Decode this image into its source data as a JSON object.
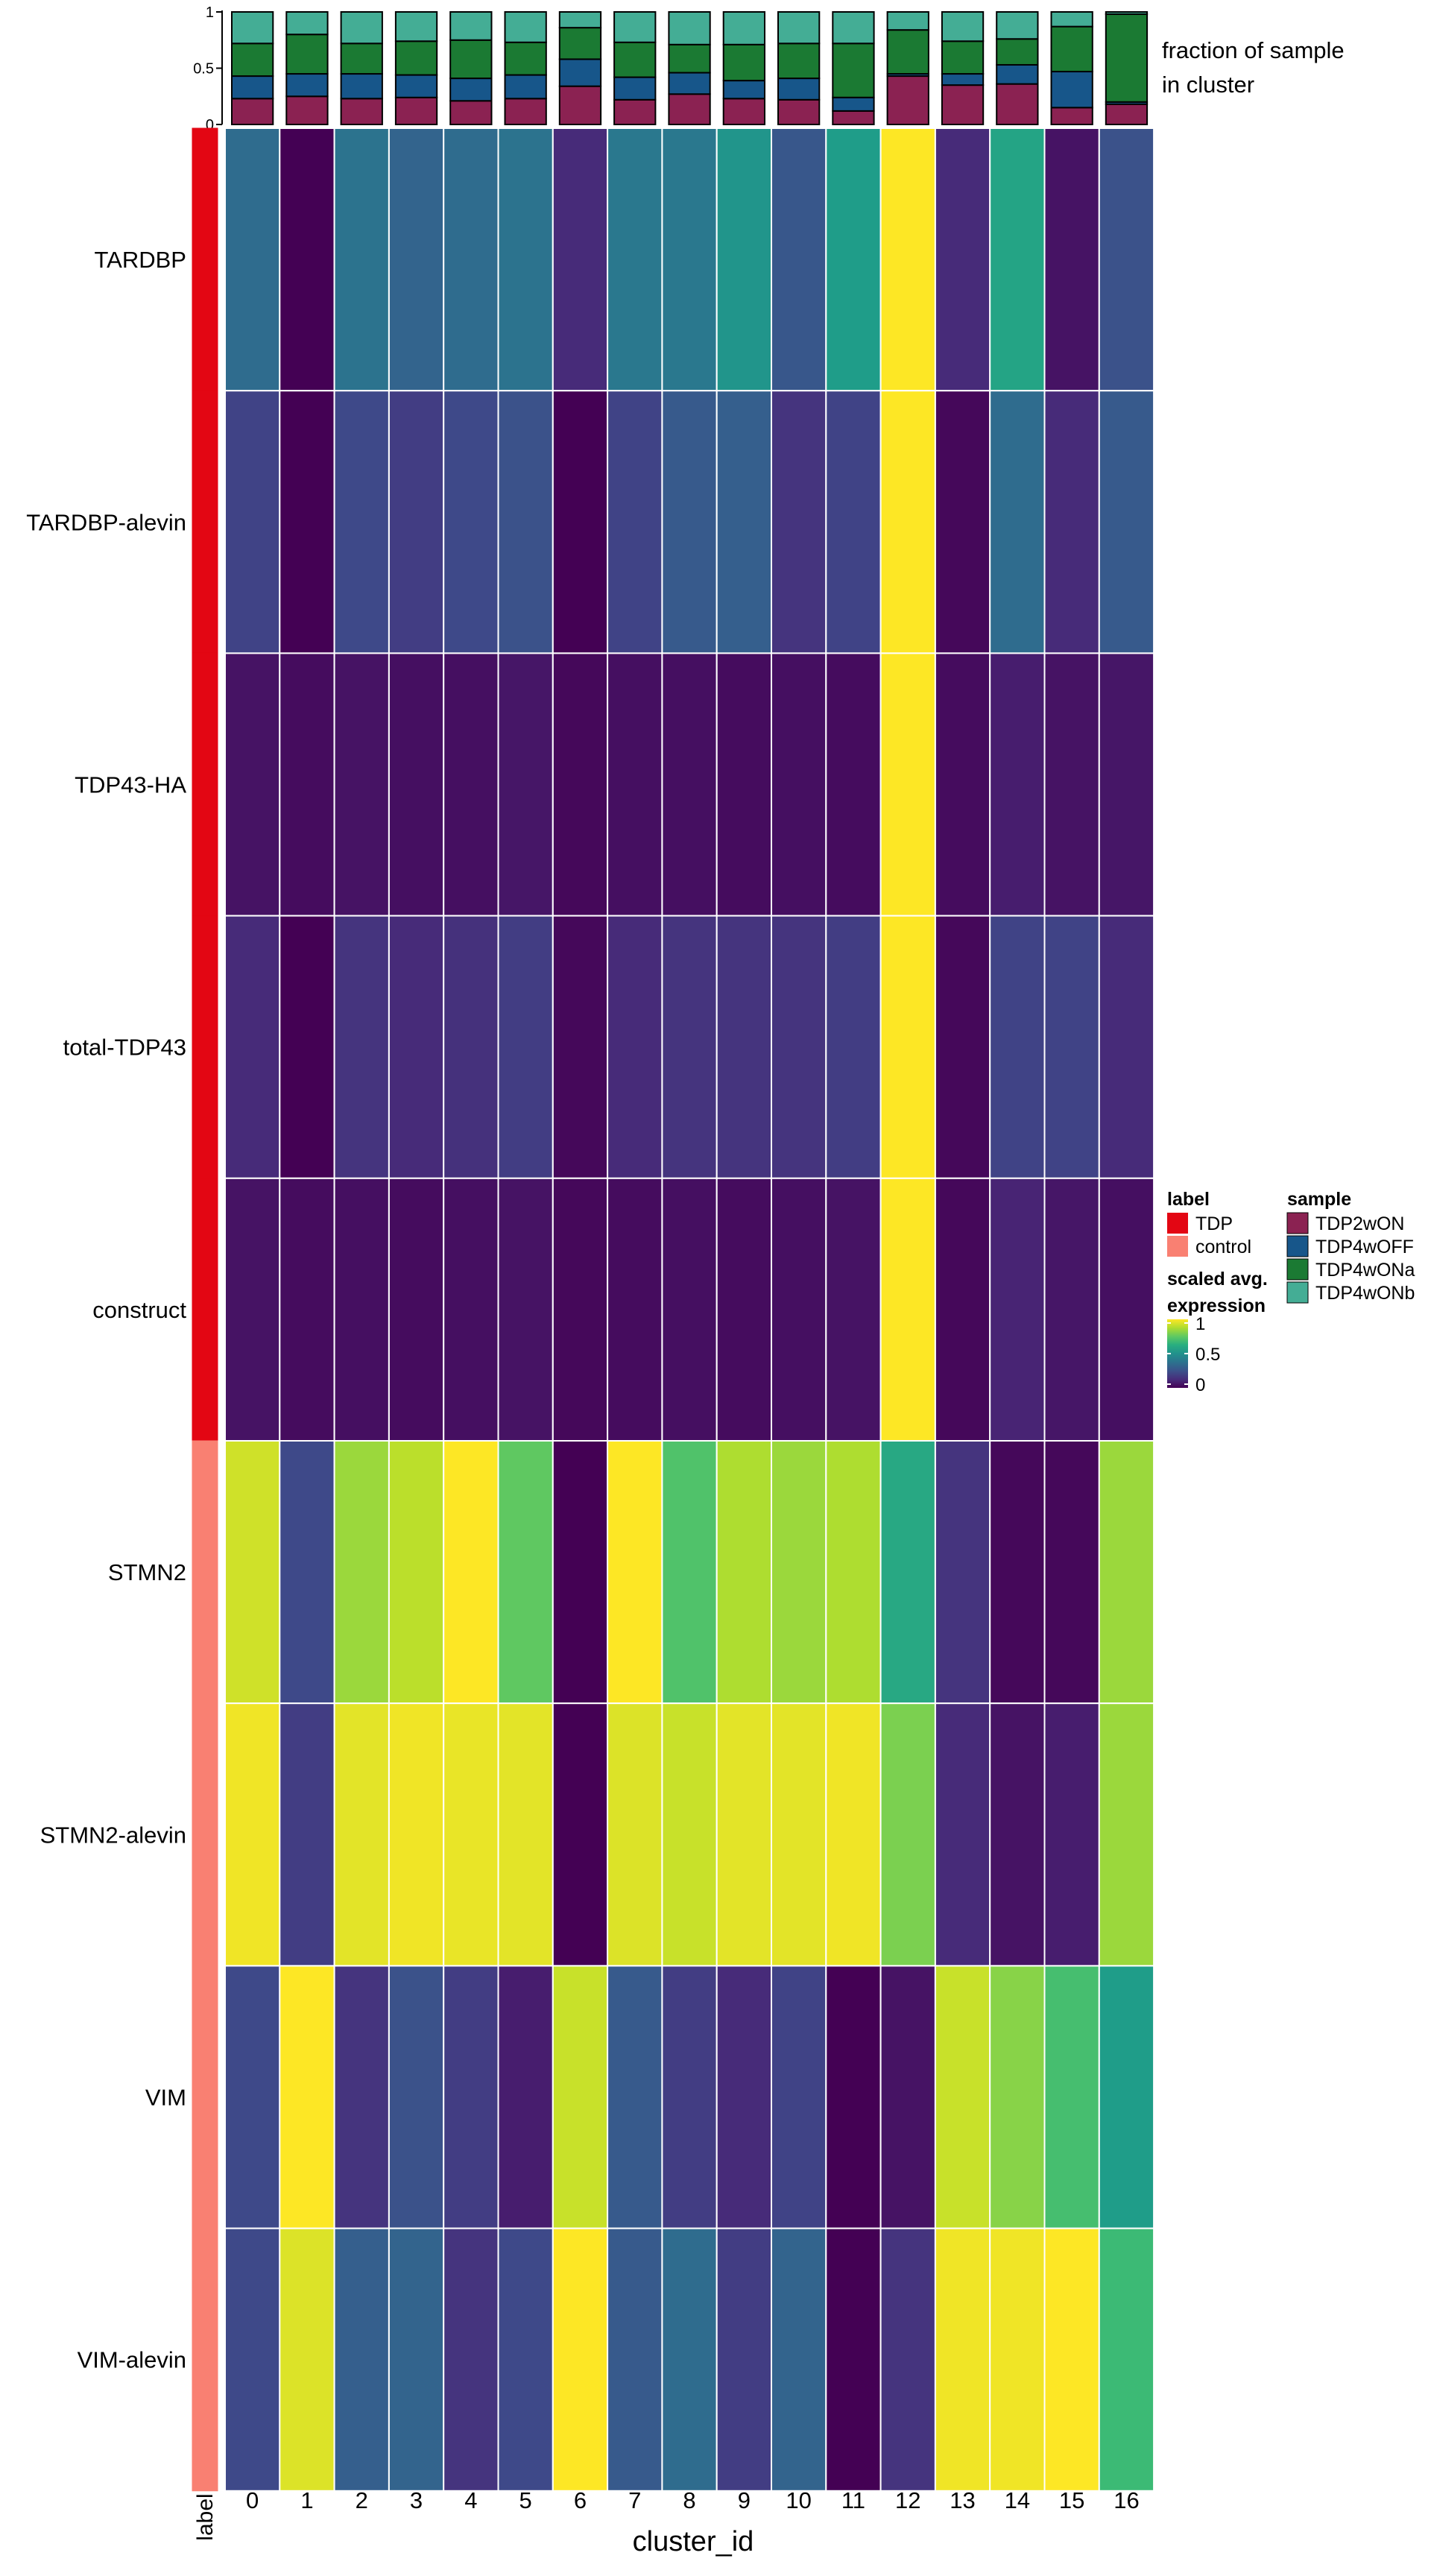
{
  "chart_data": [
    {
      "type": "bar",
      "stacked": true,
      "categories": [
        "0",
        "1",
        "2",
        "3",
        "4",
        "5",
        "6",
        "7",
        "8",
        "9",
        "10",
        "11",
        "12",
        "13",
        "14",
        "15",
        "16"
      ],
      "ylim": [
        0,
        1
      ],
      "yticks": [
        "0",
        "0.5",
        "1"
      ],
      "side_label": [
        "fraction of sample",
        "in cluster"
      ],
      "series": [
        {
          "name": "TDP2wON",
          "color": "#8B2252",
          "values": [
            0.23,
            0.25,
            0.23,
            0.24,
            0.21,
            0.23,
            0.34,
            0.22,
            0.27,
            0.23,
            0.22,
            0.12,
            0.43,
            0.35,
            0.36,
            0.15,
            0.18
          ]
        },
        {
          "name": "TDP4wOFF",
          "color": "#17568A",
          "values": [
            0.2,
            0.2,
            0.22,
            0.2,
            0.2,
            0.21,
            0.24,
            0.2,
            0.19,
            0.16,
            0.19,
            0.12,
            0.02,
            0.1,
            0.17,
            0.32,
            0.02
          ]
        },
        {
          "name": "TDP4wONa",
          "color": "#1B7A33",
          "values": [
            0.29,
            0.35,
            0.27,
            0.3,
            0.34,
            0.29,
            0.28,
            0.31,
            0.25,
            0.32,
            0.31,
            0.48,
            0.39,
            0.29,
            0.23,
            0.4,
            0.78
          ]
        },
        {
          "name": "TDP4wONb",
          "color": "#44AD95",
          "values": [
            0.28,
            0.2,
            0.28,
            0.26,
            0.25,
            0.27,
            0.14,
            0.27,
            0.29,
            0.29,
            0.28,
            0.28,
            0.16,
            0.26,
            0.24,
            0.13,
            0.02
          ]
        }
      ]
    },
    {
      "type": "heatmap",
      "x": [
        "0",
        "1",
        "2",
        "3",
        "4",
        "5",
        "6",
        "7",
        "8",
        "9",
        "10",
        "11",
        "12",
        "13",
        "14",
        "15",
        "16"
      ],
      "xlabel": "cluster_id",
      "y": [
        "TARDBP",
        "TARDBP-alevin",
        "TDP43-HA",
        "total-TDP43",
        "construct",
        "STMN2",
        "STMN2-alevin",
        "VIM",
        "VIM-alevin"
      ],
      "row_labels": [
        "TDP",
        "TDP",
        "TDP",
        "TDP",
        "TDP",
        "control",
        "control",
        "control",
        "control"
      ],
      "label_column_title": "label",
      "colorscale": "viridis",
      "zlim": [
        0,
        1
      ],
      "values": [
        [
          0.35,
          0.0,
          0.38,
          0.32,
          0.35,
          0.38,
          0.12,
          0.4,
          0.4,
          0.52,
          0.27,
          0.55,
          1.0,
          0.12,
          0.58,
          0.05,
          0.25
        ],
        [
          0.2,
          0.0,
          0.22,
          0.18,
          0.22,
          0.25,
          0.0,
          0.2,
          0.28,
          0.3,
          0.15,
          0.2,
          1.0,
          0.02,
          0.35,
          0.12,
          0.28
        ],
        [
          0.05,
          0.03,
          0.05,
          0.04,
          0.04,
          0.06,
          0.02,
          0.04,
          0.04,
          0.03,
          0.04,
          0.03,
          1.0,
          0.03,
          0.08,
          0.05,
          0.06
        ],
        [
          0.12,
          0.0,
          0.15,
          0.12,
          0.14,
          0.18,
          0.02,
          0.12,
          0.15,
          0.15,
          0.15,
          0.18,
          1.0,
          0.02,
          0.2,
          0.2,
          0.12
        ],
        [
          0.05,
          0.03,
          0.04,
          0.03,
          0.04,
          0.05,
          0.02,
          0.03,
          0.04,
          0.03,
          0.04,
          0.05,
          1.0,
          0.02,
          0.1,
          0.06,
          0.04
        ],
        [
          0.93,
          0.22,
          0.85,
          0.9,
          1.0,
          0.75,
          0.0,
          1.0,
          0.72,
          0.88,
          0.85,
          0.88,
          0.6,
          0.15,
          0.02,
          0.02,
          0.85
        ],
        [
          0.98,
          0.18,
          0.96,
          0.98,
          0.97,
          0.96,
          0.0,
          0.95,
          0.92,
          0.96,
          0.96,
          0.98,
          0.8,
          0.12,
          0.05,
          0.08,
          0.85
        ],
        [
          0.22,
          1.0,
          0.15,
          0.25,
          0.18,
          0.08,
          0.92,
          0.28,
          0.18,
          0.12,
          0.2,
          0.0,
          0.05,
          0.92,
          0.82,
          0.7,
          0.55
        ],
        [
          0.22,
          0.95,
          0.3,
          0.32,
          0.15,
          0.22,
          1.0,
          0.28,
          0.35,
          0.18,
          0.32,
          0.0,
          0.15,
          0.98,
          0.98,
          1.0,
          0.68
        ]
      ]
    }
  ],
  "legend": {
    "label_title": "label",
    "label_items": [
      {
        "name": "TDP",
        "color": "#E30613"
      },
      {
        "name": "control",
        "color": "#F98072"
      }
    ],
    "sample_title": "sample",
    "expression_title": [
      "scaled avg.",
      "expression"
    ],
    "expression_ticks": [
      "1",
      "0.5",
      "0"
    ]
  }
}
